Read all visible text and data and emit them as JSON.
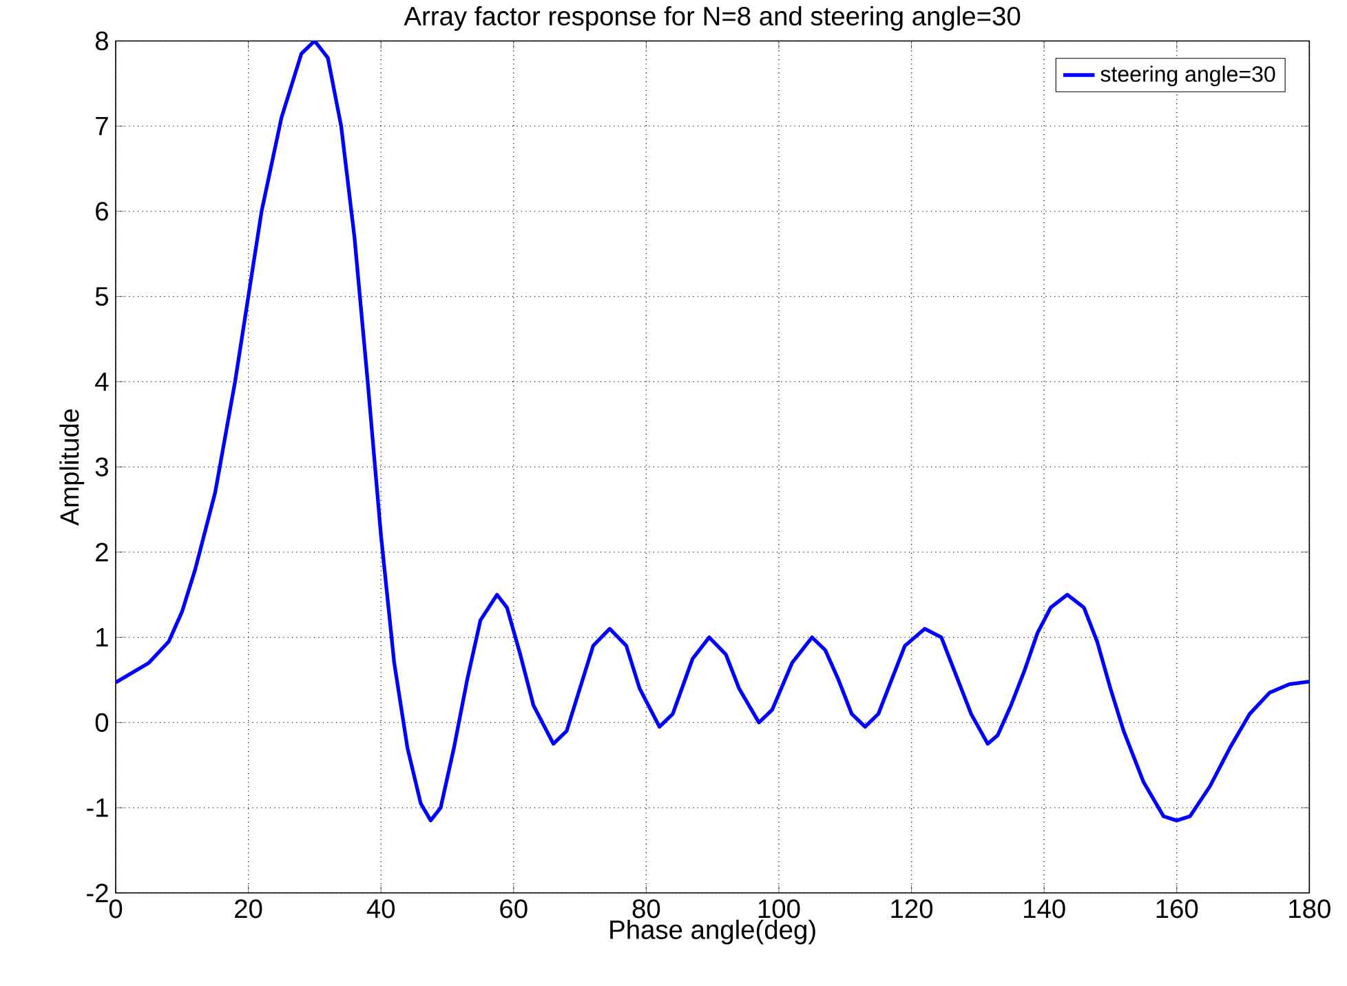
{
  "chart_data": {
    "type": "line",
    "title": "Array factor response for N=8 and steering angle=30",
    "xlabel": "Phase angle(deg)",
    "ylabel": "Amplitude",
    "x": [
      0,
      5,
      8,
      10,
      12,
      15,
      18,
      20,
      22,
      25,
      28,
      30,
      32,
      34,
      36,
      38,
      40,
      42,
      44,
      46,
      47.5,
      49,
      51,
      53,
      55,
      57.5,
      59,
      61,
      63,
      66,
      68,
      70,
      72,
      74.5,
      77,
      79,
      82,
      84,
      87,
      89.5,
      92,
      94,
      97,
      99,
      102,
      105,
      107,
      109,
      111,
      113,
      115,
      117,
      119,
      122,
      124.5,
      127,
      129,
      131.5,
      133,
      135,
      137,
      139,
      141,
      143.5,
      146,
      148,
      150,
      152,
      155,
      158,
      160,
      162,
      165,
      168,
      171,
      174,
      177,
      180
    ],
    "series": [
      {
        "name": "steering angle=30",
        "color": "#0000ff",
        "values": [
          0.47,
          0.7,
          0.95,
          1.3,
          1.8,
          2.7,
          4.0,
          5.0,
          6.0,
          7.1,
          7.85,
          8.0,
          7.8,
          7.0,
          5.7,
          4.0,
          2.2,
          0.7,
          -0.3,
          -0.95,
          -1.15,
          -1.0,
          -0.3,
          0.5,
          1.2,
          1.5,
          1.35,
          0.8,
          0.2,
          -0.25,
          -0.1,
          0.4,
          0.9,
          1.1,
          0.9,
          0.4,
          -0.05,
          0.1,
          0.75,
          1.0,
          0.8,
          0.4,
          0.0,
          0.15,
          0.7,
          1.0,
          0.85,
          0.5,
          0.1,
          -0.05,
          0.1,
          0.5,
          0.9,
          1.1,
          1.0,
          0.5,
          0.1,
          -0.25,
          -0.15,
          0.2,
          0.6,
          1.05,
          1.35,
          1.5,
          1.35,
          0.95,
          0.4,
          -0.1,
          -0.7,
          -1.1,
          -1.15,
          -1.1,
          -0.75,
          -0.3,
          0.1,
          0.35,
          0.45,
          0.48
        ]
      }
    ],
    "xlim": [
      0,
      180
    ],
    "ylim": [
      -2,
      8
    ],
    "xticks": [
      0,
      20,
      40,
      60,
      80,
      100,
      120,
      140,
      160,
      180
    ],
    "yticks": [
      -2,
      -1,
      0,
      1,
      2,
      3,
      4,
      5,
      6,
      7,
      8
    ],
    "grid": true,
    "legend": "top right",
    "line_style": "solid",
    "marker": "none"
  }
}
